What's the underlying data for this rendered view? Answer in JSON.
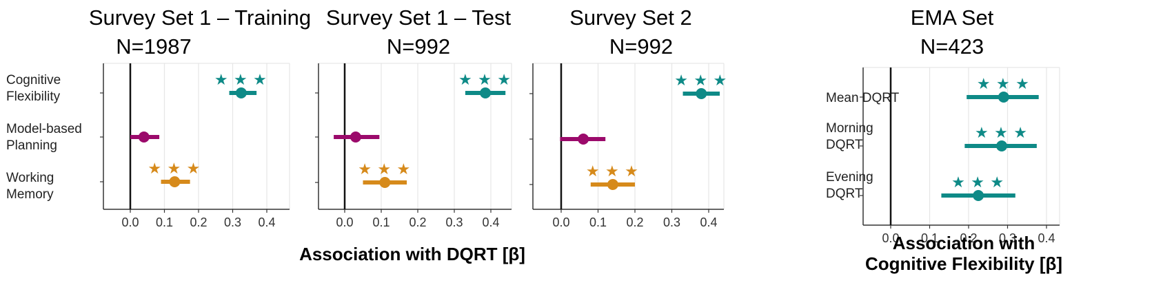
{
  "chart_data": [
    {
      "type": "forest",
      "title": "Survey Set 1 – Training",
      "subtitle": "N=1987",
      "categories": [
        "Cognitive Flexibility",
        "Model-based Planning",
        "Working Memory"
      ],
      "category_labels": [
        [
          "Cognitive",
          "Flexibility"
        ],
        [
          "Model-based",
          "Planning"
        ],
        [
          "Working",
          "Memory"
        ]
      ],
      "estimates": [
        0.325,
        0.04,
        0.13
      ],
      "ci_low": [
        0.29,
        0.0,
        0.09
      ],
      "ci_high": [
        0.37,
        0.085,
        0.175
      ],
      "significance": [
        "***",
        "",
        "***"
      ],
      "colors": [
        "#0e8a87",
        "#9b0a6b",
        "#d68a1b"
      ],
      "xlim": [
        -0.075,
        0.475
      ],
      "xticks": [
        0.0,
        0.1,
        0.2,
        0.3,
        0.4
      ],
      "xtick_labels": [
        "0.0",
        "0.1",
        "0.2",
        "0.3",
        "0.4"
      ],
      "reference_line": 0.0,
      "grid": true
    },
    {
      "type": "forest",
      "title": "Survey Set 1 – Test",
      "subtitle": "N=992",
      "categories": [
        "Cognitive Flexibility",
        "Model-based Planning",
        "Working Memory"
      ],
      "estimates": [
        0.385,
        0.03,
        0.11
      ],
      "ci_low": [
        0.33,
        -0.03,
        0.05
      ],
      "ci_high": [
        0.44,
        0.095,
        0.17
      ],
      "significance": [
        "***",
        "",
        "***"
      ],
      "colors": [
        "#0e8a87",
        "#9b0a6b",
        "#d68a1b"
      ],
      "xlim": [
        -0.075,
        0.475
      ],
      "xticks": [
        0.0,
        0.1,
        0.2,
        0.3,
        0.4
      ],
      "xtick_labels": [
        "0.0",
        "0.1",
        "0.2",
        "0.3",
        "0.4"
      ],
      "reference_line": 0.0,
      "grid": true
    },
    {
      "type": "forest",
      "title": "Survey Set 2",
      "subtitle": "N=992",
      "categories": [
        "Cognitive Flexibility",
        "Model-based Planning",
        "Working Memory"
      ],
      "estimates": [
        0.38,
        0.06,
        0.14
      ],
      "ci_low": [
        0.33,
        -0.003,
        0.08
      ],
      "ci_high": [
        0.43,
        0.12,
        0.2
      ],
      "significance": [
        "***",
        "",
        "***"
      ],
      "colors": [
        "#0e8a87",
        "#9b0a6b",
        "#d68a1b"
      ],
      "xlim": [
        -0.075,
        0.475
      ],
      "xticks": [
        0.0,
        0.1,
        0.2,
        0.3,
        0.4
      ],
      "xtick_labels": [
        "0.0",
        "0.1",
        "0.2",
        "0.3",
        "0.4"
      ],
      "reference_line": 0.0,
      "grid": true
    },
    {
      "type": "forest",
      "title": "EMA Set",
      "subtitle": "N=423",
      "categories": [
        "Mean DQRT",
        "Morning DQRT",
        "Evening DQRT"
      ],
      "category_labels": [
        [
          "Mean DQRT"
        ],
        [
          "Morning",
          "DQRT"
        ],
        [
          "Evening",
          "DQRT"
        ]
      ],
      "estimates": [
        0.29,
        0.285,
        0.225
      ],
      "ci_low": [
        0.195,
        0.19,
        0.13
      ],
      "ci_high": [
        0.38,
        0.375,
        0.32
      ],
      "significance": [
        "***",
        "***",
        "***"
      ],
      "colors": [
        "#0e8a87",
        "#0e8a87",
        "#0e8a87"
      ],
      "xlim": [
        -0.075,
        0.475
      ],
      "xticks": [
        0.0,
        0.1,
        0.2,
        0.3,
        0.4
      ],
      "xtick_labels": [
        "0.0",
        "0.1",
        "0.2",
        "0.3",
        "0.4"
      ],
      "reference_line": 0.0,
      "grid": true,
      "xlabel_lines": [
        "Association with",
        "Cognitive Flexibility [β]"
      ]
    }
  ],
  "shared_xlabel": "Association with DQRT [β]"
}
